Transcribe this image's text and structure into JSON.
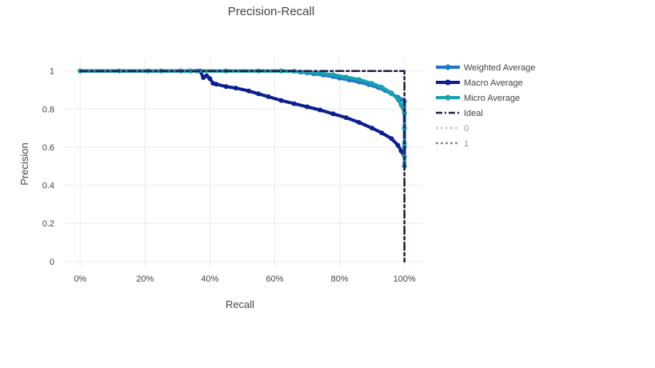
{
  "chart_data": {
    "type": "line",
    "title": "Precision-Recall",
    "xlabel": "Recall",
    "ylabel": "Precision",
    "xlim": [
      -0.05,
      1.06
    ],
    "ylim": [
      -0.03,
      1.07
    ],
    "x_ticks": [
      0,
      0.2,
      0.4,
      0.6,
      0.8,
      1.0
    ],
    "x_tick_labels": [
      "0%",
      "20%",
      "40%",
      "60%",
      "80%",
      "100%"
    ],
    "y_ticks": [
      0,
      0.2,
      0.4,
      0.6,
      0.8,
      1
    ],
    "y_tick_labels": [
      "0",
      "0.2",
      "0.4",
      "0.6",
      "0.8",
      "1"
    ],
    "grid": true,
    "legend_position": "right",
    "series": [
      {
        "name": "Weighted Average",
        "color": "#1f77c9",
        "style": "solid-markers",
        "x": [
          0,
          0.12,
          0.21,
          0.25,
          0.31,
          0.34,
          0.36,
          0.45,
          0.55,
          0.62,
          0.66,
          0.68,
          0.7,
          0.72,
          0.75,
          0.78,
          0.8,
          0.83,
          0.86,
          0.89,
          0.92,
          0.94,
          0.96,
          0.98,
          0.99,
          1.0,
          1.0,
          1.0,
          1.0,
          1.0
        ],
        "y": [
          1,
          1,
          1,
          1,
          1,
          1,
          1,
          1,
          1,
          1,
          0.998,
          0.994,
          0.99,
          0.985,
          0.978,
          0.97,
          0.962,
          0.952,
          0.942,
          0.928,
          0.912,
          0.898,
          0.88,
          0.862,
          0.85,
          0.84,
          0.78,
          0.7,
          0.6,
          0.5
        ]
      },
      {
        "name": "Macro Average",
        "color": "#0a1f8f",
        "style": "solid-markers",
        "x": [
          0,
          0.12,
          0.21,
          0.25,
          0.31,
          0.34,
          0.37,
          0.38,
          0.39,
          0.4,
          0.41,
          0.42,
          0.45,
          0.48,
          0.52,
          0.55,
          0.58,
          0.62,
          0.66,
          0.7,
          0.74,
          0.78,
          0.82,
          0.86,
          0.9,
          0.93,
          0.96,
          0.98,
          0.99,
          1.0,
          1.0
        ],
        "y": [
          1,
          1,
          1,
          1,
          1,
          1,
          1,
          0.965,
          0.975,
          0.96,
          0.935,
          0.93,
          0.918,
          0.91,
          0.895,
          0.88,
          0.865,
          0.845,
          0.828,
          0.812,
          0.795,
          0.775,
          0.755,
          0.73,
          0.7,
          0.675,
          0.645,
          0.61,
          0.58,
          0.55,
          0.5
        ]
      },
      {
        "name": "Micro Average",
        "color": "#17a2b0",
        "style": "solid-markers",
        "x": [
          0,
          0.12,
          0.21,
          0.25,
          0.31,
          0.34,
          0.36,
          0.45,
          0.55,
          0.62,
          0.66,
          0.7,
          0.74,
          0.78,
          0.82,
          0.86,
          0.9,
          0.93,
          0.96,
          0.98,
          0.99,
          1.0,
          1.0,
          1.0,
          1.0,
          1.0
        ],
        "y": [
          1,
          1,
          1,
          1,
          1,
          1,
          1,
          1,
          1,
          1,
          0.998,
          0.994,
          0.988,
          0.98,
          0.968,
          0.955,
          0.935,
          0.915,
          0.885,
          0.85,
          0.82,
          0.78,
          0.7,
          0.62,
          0.55,
          0.5
        ]
      },
      {
        "name": "Ideal",
        "color": "#2a1b4a",
        "style": "dashdot",
        "x": [
          0,
          1,
          1
        ],
        "y": [
          1,
          1,
          0
        ]
      }
    ],
    "legend_extra": [
      {
        "name": "0",
        "color": "#c6c3ee",
        "style": "dot"
      },
      {
        "name": "1",
        "color": "#9b7fa0",
        "style": "dot"
      }
    ]
  }
}
